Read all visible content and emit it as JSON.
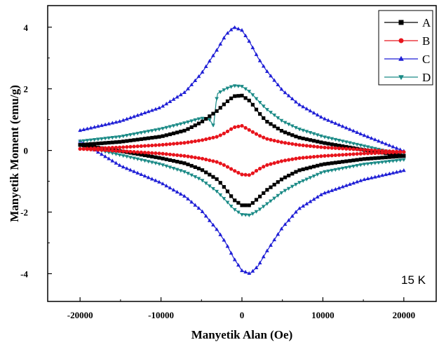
{
  "chart_data": {
    "type": "line",
    "title": "",
    "xlabel": "Manyetik Alan (Oe)",
    "ylabel": "Manyetik Moment (emu/g)",
    "xlim": [
      -24000,
      24000
    ],
    "ylim": [
      -4.9,
      4.7
    ],
    "xticks": [
      -20000,
      -10000,
      0,
      10000,
      20000
    ],
    "yticks": [
      -4,
      -2,
      0,
      2,
      4
    ],
    "annotation": "15 K",
    "legend_position": "top-right",
    "grid": false,
    "series": [
      {
        "name": "A",
        "color": "#000000",
        "marker": "square",
        "upper": {
          "x": [
            -20000,
            -15000,
            -10000,
            -7000,
            -5000,
            -3000,
            -2000,
            -1000,
            0,
            1000,
            2000,
            3000,
            5000,
            7000,
            10000,
            15000,
            20000
          ],
          "y": [
            0.18,
            0.28,
            0.45,
            0.65,
            0.92,
            1.3,
            1.55,
            1.76,
            1.78,
            1.6,
            1.25,
            0.95,
            0.62,
            0.42,
            0.25,
            0.02,
            -0.18
          ]
        },
        "lower": {
          "x": [
            -20000,
            -15000,
            -10000,
            -7000,
            -5000,
            -3000,
            -2000,
            -1000,
            0,
            1000,
            2000,
            3000,
            5000,
            7000,
            10000,
            15000,
            20000
          ],
          "y": [
            0.18,
            -0.02,
            -0.25,
            -0.42,
            -0.62,
            -0.95,
            -1.25,
            -1.6,
            -1.78,
            -1.78,
            -1.55,
            -1.3,
            -0.92,
            -0.65,
            -0.45,
            -0.28,
            -0.18
          ]
        }
      },
      {
        "name": "B",
        "color": "#e8141c",
        "marker": "circle",
        "upper": {
          "x": [
            -20000,
            -15000,
            -10000,
            -7000,
            -5000,
            -3000,
            -2000,
            -1000,
            0,
            1000,
            2000,
            3000,
            5000,
            7000,
            10000,
            15000,
            20000
          ],
          "y": [
            0.05,
            0.1,
            0.18,
            0.25,
            0.33,
            0.45,
            0.58,
            0.75,
            0.8,
            0.65,
            0.5,
            0.38,
            0.26,
            0.18,
            0.1,
            0.02,
            -0.05
          ]
        },
        "lower": {
          "x": [
            -20000,
            -15000,
            -10000,
            -7000,
            -5000,
            -3000,
            -2000,
            -1000,
            0,
            1000,
            2000,
            3000,
            5000,
            7000,
            10000,
            15000,
            20000
          ],
          "y": [
            0.05,
            -0.02,
            -0.1,
            -0.18,
            -0.26,
            -0.38,
            -0.5,
            -0.65,
            -0.78,
            -0.8,
            -0.62,
            -0.48,
            -0.34,
            -0.25,
            -0.18,
            -0.1,
            -0.05
          ]
        }
      },
      {
        "name": "C",
        "color": "#1f1fd6",
        "marker": "triangle-up",
        "upper": {
          "x": [
            -20000,
            -15000,
            -10000,
            -7000,
            -5000,
            -3000,
            -2000,
            -1000,
            0,
            1000,
            2000,
            3000,
            5000,
            7000,
            10000,
            15000,
            20000
          ],
          "y": [
            0.65,
            0.95,
            1.4,
            1.9,
            2.5,
            3.3,
            3.75,
            4.0,
            3.9,
            3.5,
            3.0,
            2.6,
            1.95,
            1.5,
            1.05,
            0.5,
            -0.02
          ]
        },
        "lower": {
          "x": [
            -20000,
            -15000,
            -10000,
            -7000,
            -5000,
            -3000,
            -2000,
            -1000,
            0,
            1000,
            2000,
            3000,
            5000,
            7000,
            10000,
            15000,
            20000
          ],
          "y": [
            0.3,
            -0.5,
            -1.05,
            -1.5,
            -1.95,
            -2.6,
            -3.0,
            -3.5,
            -3.9,
            -4.0,
            -3.75,
            -3.3,
            -2.5,
            -1.9,
            -1.4,
            -0.95,
            -0.65
          ]
        }
      },
      {
        "name": "D",
        "color": "#1a8a86",
        "marker": "triangle-down",
        "upper": {
          "x": [
            -20000,
            -15000,
            -10000,
            -7000,
            -5000,
            -4000,
            -3500,
            -3200,
            -3000,
            -2000,
            -1000,
            0,
            1000,
            2000,
            3000,
            5000,
            7000,
            10000,
            15000,
            20000
          ],
          "y": [
            0.3,
            0.45,
            0.7,
            0.9,
            1.05,
            1.0,
            0.8,
            1.55,
            1.85,
            2.0,
            2.1,
            2.08,
            1.9,
            1.62,
            1.35,
            0.95,
            0.7,
            0.45,
            0.15,
            -0.15
          ]
        },
        "lower": {
          "x": [
            -20000,
            -15000,
            -10000,
            -7000,
            -5000,
            -3000,
            -2000,
            -1000,
            0,
            1000,
            2000,
            3000,
            5000,
            7000,
            10000,
            15000,
            20000
          ],
          "y": [
            0.15,
            -0.15,
            -0.45,
            -0.7,
            -0.95,
            -1.35,
            -1.62,
            -1.9,
            -2.08,
            -2.1,
            -1.95,
            -1.75,
            -1.35,
            -1.05,
            -0.7,
            -0.45,
            -0.3
          ]
        }
      }
    ]
  }
}
